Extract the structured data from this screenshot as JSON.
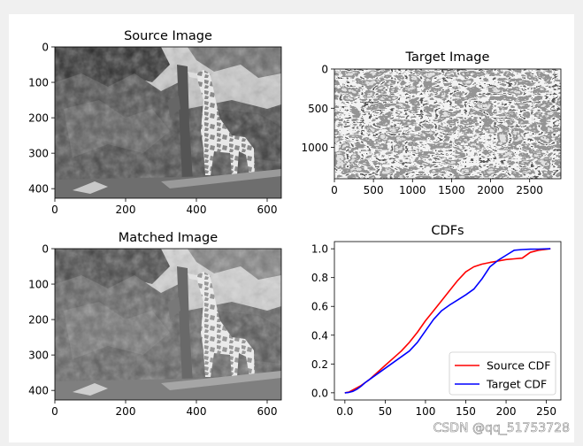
{
  "chart_data": [
    {
      "type": "image",
      "title": "Source Image",
      "x_ticks": [
        0,
        200,
        400,
        600
      ],
      "y_ticks": [
        0,
        100,
        200,
        300,
        400
      ],
      "xlim": [
        0,
        640
      ],
      "ylim": [
        427,
        0
      ],
      "image_description": "grayscale photo of a giraffe among trees"
    },
    {
      "type": "image",
      "title": "Target Image",
      "x_ticks": [
        0,
        500,
        1000,
        1500,
        2000,
        2500
      ],
      "y_ticks": [
        0,
        500,
        1000
      ],
      "xlim": [
        0,
        2900
      ],
      "ylim": [
        1400,
        0
      ],
      "image_description": "grayscale abstract drip painting texture"
    },
    {
      "type": "image",
      "title": "Matched Image",
      "x_ticks": [
        0,
        200,
        400,
        600
      ],
      "y_ticks": [
        0,
        100,
        200,
        300,
        400
      ],
      "xlim": [
        0,
        640
      ],
      "ylim": [
        427,
        0
      ],
      "image_description": "histogram-matched grayscale giraffe photo"
    },
    {
      "type": "line",
      "title": "CDFs",
      "x_ticks": [
        0,
        50,
        100,
        150,
        200,
        250
      ],
      "y_ticks": [
        0.0,
        0.2,
        0.4,
        0.6,
        0.8,
        1.0
      ],
      "xlim": [
        -13,
        268
      ],
      "ylim": [
        -0.05,
        1.05
      ],
      "legend_position": "lower-right",
      "series": [
        {
          "name": "Source CDF",
          "color": "#ff0000",
          "x": [
            0,
            5,
            10,
            15,
            20,
            25,
            30,
            40,
            50,
            60,
            70,
            80,
            90,
            100,
            110,
            120,
            130,
            140,
            150,
            160,
            170,
            180,
            190,
            200,
            210,
            220,
            230,
            240,
            255
          ],
          "y": [
            0.0,
            0.005,
            0.02,
            0.035,
            0.05,
            0.07,
            0.09,
            0.14,
            0.19,
            0.24,
            0.29,
            0.35,
            0.42,
            0.5,
            0.57,
            0.64,
            0.71,
            0.78,
            0.84,
            0.875,
            0.893,
            0.905,
            0.915,
            0.925,
            0.93,
            0.935,
            0.975,
            0.99,
            1.0
          ]
        },
        {
          "name": "Target CDF",
          "color": "#0000ff",
          "x": [
            0,
            5,
            10,
            15,
            20,
            25,
            30,
            40,
            50,
            60,
            70,
            80,
            90,
            100,
            110,
            120,
            130,
            140,
            150,
            160,
            170,
            180,
            190,
            200,
            210,
            220,
            230,
            240,
            255
          ],
          "y": [
            0.0,
            0.003,
            0.01,
            0.025,
            0.045,
            0.07,
            0.09,
            0.13,
            0.17,
            0.21,
            0.25,
            0.29,
            0.35,
            0.43,
            0.51,
            0.57,
            0.61,
            0.645,
            0.68,
            0.72,
            0.79,
            0.875,
            0.92,
            0.955,
            0.99,
            0.995,
            0.997,
            0.998,
            1.0
          ]
        }
      ]
    }
  ],
  "watermark": "CSDN @qq_51753728"
}
